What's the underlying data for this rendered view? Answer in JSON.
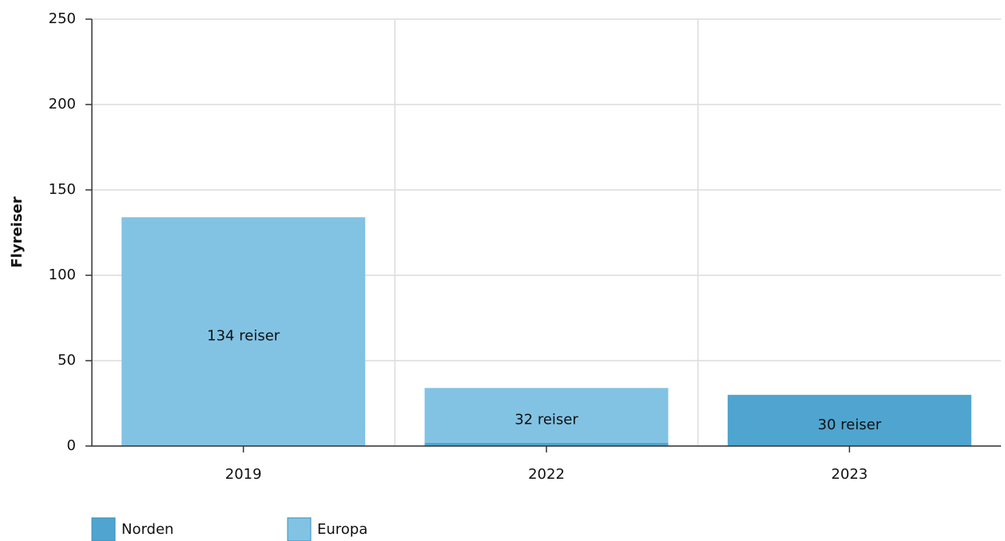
{
  "chart_data": {
    "type": "stacked_bar",
    "y_label": "Flyreiser",
    "categories": [
      "2019",
      "2022",
      "2023"
    ],
    "series": [
      {
        "name": "Norden",
        "color": "#4fa5cf",
        "values": [
          0,
          2,
          30
        ],
        "value_labels": [
          null,
          null,
          "30 reiser"
        ]
      },
      {
        "name": "Europa",
        "color": "#82c3e4",
        "values": [
          134,
          32,
          0
        ],
        "value_labels": [
          "134 reiser",
          "32 reiser",
          null
        ]
      }
    ],
    "ylim": [
      0,
      250
    ],
    "yticks": [
      0,
      50,
      100,
      150,
      200,
      250
    ],
    "grid": true,
    "legend": "bottom-left"
  }
}
